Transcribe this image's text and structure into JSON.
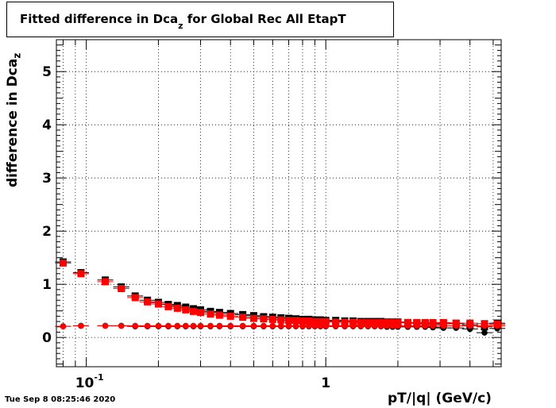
{
  "chart_data": {
    "type": "scatter",
    "title_main": "Fitted difference in Dca",
    "title_sub": "z",
    "title_rest": " for Global Rec All EtapT",
    "xlabel": "pT/|q| (GeV/c)",
    "ylabel_main": "difference in Dca",
    "ylabel_sub": "z",
    "xscale": "log",
    "xlim": [
      0.075,
      5.4
    ],
    "ylim": [
      -0.55,
      5.6
    ],
    "yticks": [
      "0",
      "1",
      "2",
      "3",
      "4",
      "5"
    ],
    "xtick_labels": [
      {
        "value": 0.1,
        "base": "10",
        "exp": "-1"
      },
      {
        "value": 1,
        "base": "1",
        "exp": ""
      }
    ],
    "grid": true,
    "series": [
      {
        "marker": "square",
        "color": "#000000",
        "x": [
          0.08,
          0.095,
          0.12,
          0.14,
          0.16,
          0.18,
          0.2,
          0.22,
          0.24,
          0.26,
          0.28,
          0.3,
          0.33,
          0.36,
          0.4,
          0.45,
          0.5,
          0.55,
          0.6,
          0.65,
          0.7,
          0.75,
          0.8,
          0.85,
          0.9,
          0.95,
          1.0,
          1.1,
          1.2,
          1.3,
          1.4,
          1.5,
          1.6,
          1.7,
          1.8,
          1.9,
          2.0,
          2.2,
          2.4,
          2.6,
          2.8,
          3.1,
          3.5,
          4.0,
          4.6,
          5.2
        ],
        "y": [
          1.42,
          1.22,
          1.08,
          0.95,
          0.78,
          0.7,
          0.66,
          0.62,
          0.6,
          0.57,
          0.54,
          0.52,
          0.49,
          0.47,
          0.45,
          0.43,
          0.41,
          0.39,
          0.38,
          0.37,
          0.36,
          0.35,
          0.34,
          0.34,
          0.33,
          0.33,
          0.32,
          0.32,
          0.31,
          0.31,
          0.3,
          0.3,
          0.3,
          0.3,
          0.29,
          0.29,
          0.29,
          0.28,
          0.27,
          0.26,
          0.25,
          0.26,
          0.26,
          0.24,
          0.2,
          0.27
        ]
      },
      {
        "marker": "square",
        "color": "#ff0000",
        "x": [
          0.08,
          0.095,
          0.12,
          0.14,
          0.16,
          0.18,
          0.2,
          0.22,
          0.24,
          0.26,
          0.28,
          0.3,
          0.33,
          0.36,
          0.4,
          0.45,
          0.5,
          0.55,
          0.6,
          0.65,
          0.7,
          0.75,
          0.8,
          0.85,
          0.9,
          0.95,
          1.0,
          1.1,
          1.2,
          1.3,
          1.4,
          1.5,
          1.6,
          1.7,
          1.8,
          1.9,
          2.0,
          2.2,
          2.4,
          2.6,
          2.8,
          3.1,
          3.5,
          4.0,
          4.6,
          5.2
        ],
        "y": [
          1.4,
          1.2,
          1.05,
          0.92,
          0.75,
          0.67,
          0.63,
          0.58,
          0.55,
          0.52,
          0.49,
          0.47,
          0.44,
          0.42,
          0.4,
          0.38,
          0.36,
          0.35,
          0.34,
          0.33,
          0.32,
          0.32,
          0.31,
          0.31,
          0.3,
          0.3,
          0.3,
          0.29,
          0.29,
          0.29,
          0.28,
          0.28,
          0.28,
          0.28,
          0.28,
          0.28,
          0.28,
          0.28,
          0.28,
          0.28,
          0.28,
          0.28,
          0.27,
          0.27,
          0.26,
          0.25
        ]
      },
      {
        "marker": "circle",
        "color": "#000000",
        "x": [
          0.08,
          0.095,
          0.12,
          0.14,
          0.16,
          0.18,
          0.2,
          0.22,
          0.24,
          0.26,
          0.28,
          0.3,
          0.33,
          0.36,
          0.4,
          0.45,
          0.5,
          0.55,
          0.6,
          0.65,
          0.7,
          0.75,
          0.8,
          0.85,
          0.9,
          0.95,
          1.0,
          1.1,
          1.2,
          1.3,
          1.4,
          1.5,
          1.6,
          1.7,
          1.8,
          1.9,
          2.0,
          2.2,
          2.4,
          2.6,
          2.8,
          3.1,
          3.5,
          4.0,
          4.6,
          5.2
        ],
        "y": [
          0.21,
          0.22,
          0.22,
          0.22,
          0.21,
          0.21,
          0.21,
          0.21,
          0.21,
          0.21,
          0.21,
          0.21,
          0.21,
          0.21,
          0.21,
          0.21,
          0.21,
          0.21,
          0.21,
          0.21,
          0.21,
          0.21,
          0.21,
          0.21,
          0.21,
          0.21,
          0.21,
          0.21,
          0.21,
          0.21,
          0.21,
          0.21,
          0.21,
          0.21,
          0.2,
          0.2,
          0.2,
          0.2,
          0.2,
          0.2,
          0.19,
          0.18,
          0.18,
          0.16,
          0.09,
          0.17
        ]
      },
      {
        "marker": "circle",
        "color": "#ff0000",
        "x": [
          0.08,
          0.095,
          0.12,
          0.14,
          0.16,
          0.18,
          0.2,
          0.22,
          0.24,
          0.26,
          0.28,
          0.3,
          0.33,
          0.36,
          0.4,
          0.45,
          0.5,
          0.55,
          0.6,
          0.65,
          0.7,
          0.75,
          0.8,
          0.85,
          0.9,
          0.95,
          1.0,
          1.1,
          1.2,
          1.3,
          1.4,
          1.5,
          1.6,
          1.7,
          1.8,
          1.9,
          2.0,
          2.2,
          2.4,
          2.6,
          2.8,
          3.1,
          3.5,
          4.0,
          4.6,
          5.2
        ],
        "y": [
          0.21,
          0.22,
          0.22,
          0.22,
          0.22,
          0.22,
          0.22,
          0.22,
          0.22,
          0.22,
          0.22,
          0.22,
          0.22,
          0.22,
          0.22,
          0.22,
          0.22,
          0.22,
          0.22,
          0.22,
          0.22,
          0.22,
          0.22,
          0.22,
          0.22,
          0.22,
          0.22,
          0.22,
          0.22,
          0.22,
          0.22,
          0.22,
          0.22,
          0.22,
          0.22,
          0.22,
          0.22,
          0.22,
          0.22,
          0.22,
          0.22,
          0.22,
          0.22,
          0.22,
          0.22,
          0.22
        ]
      }
    ]
  },
  "footer": {
    "datestamp": "Tue Sep  8 08:25:46 2020"
  }
}
